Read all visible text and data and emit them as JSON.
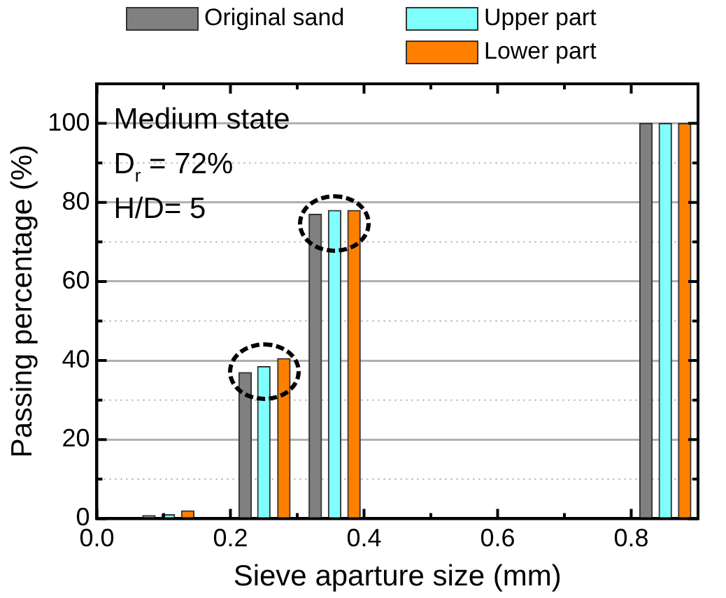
{
  "chart_data": {
    "type": "bar",
    "xlabel": "Sieve aparture size (mm)",
    "ylabel": "Passing percentage (%)",
    "series": [
      {
        "name": "Original sand",
        "color": "#808080",
        "x": [
          0.078,
          0.222,
          0.327,
          0.822
        ],
        "values": [
          0.8,
          37,
          77,
          100
        ]
      },
      {
        "name": "Upper part",
        "color": "#80ffff",
        "x": [
          0.107,
          0.25,
          0.356,
          0.851
        ],
        "values": [
          1,
          38.5,
          78,
          100
        ]
      },
      {
        "name": "Lower part",
        "color": "#ff8000",
        "x": [
          0.136,
          0.28,
          0.385,
          0.88
        ],
        "values": [
          2,
          40.5,
          78,
          100
        ]
      }
    ],
    "xlim": [
      0,
      0.9
    ],
    "xticks": [
      {
        "value": 0,
        "label": "0.0"
      },
      {
        "value": 0.1,
        "label": null
      },
      {
        "value": 0.2,
        "label": "0.2"
      },
      {
        "value": 0.3,
        "label": null
      },
      {
        "value": 0.4,
        "label": "0.4"
      },
      {
        "value": 0.5,
        "label": null
      },
      {
        "value": 0.6,
        "label": "0.6"
      },
      {
        "value": 0.7,
        "label": null
      },
      {
        "value": 0.8,
        "label": "0.8"
      },
      {
        "value": 0.9,
        "label": null
      }
    ],
    "ylim": [
      0,
      110
    ],
    "yticks": [
      0,
      {
        "value": 10,
        "label": null
      },
      20,
      {
        "value": 30,
        "label": null
      },
      40,
      {
        "value": 50,
        "label": null
      },
      60,
      {
        "value": 70,
        "label": null
      },
      80,
      {
        "value": 90,
        "label": null
      },
      100,
      {
        "value": 110,
        "label": null
      }
    ],
    "grid": "y",
    "legend": "top",
    "annotations": [
      "Medium state",
      "D$_{r}$ = 72%",
      "H/D= 5"
    ]
  }
}
